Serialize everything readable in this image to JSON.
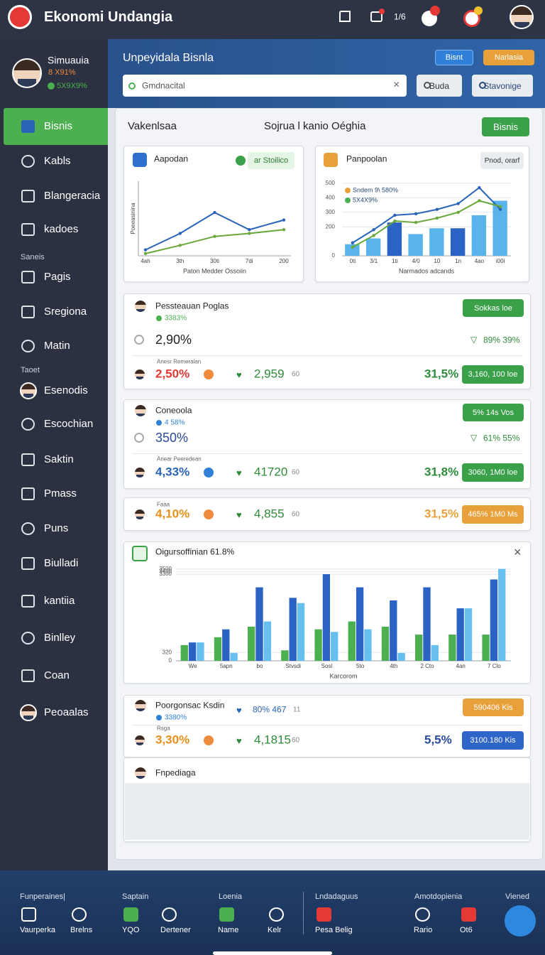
{
  "header": {
    "title": "Ekonomi Undangia",
    "badge": "1/6"
  },
  "profile": {
    "name": "Simuauia",
    "stat1": "8 X91%",
    "stat2": "5X9X9%"
  },
  "menu": {
    "items": [
      "Bisnis",
      "Kabls",
      "Blangeracia",
      "kadoes",
      "Saneis",
      "Pagis",
      "Sregiona",
      "Matin",
      "Taoet",
      "Esenodis",
      "Escochian",
      "Saktin",
      "Pmass",
      "Puns",
      "Biulladi",
      "kantiia",
      "Binlley",
      "Coan",
      "Peoaalas"
    ]
  },
  "banner": {
    "title": "Unpeyidala Bisnla",
    "buttons": [
      "Bisnt",
      "Narlasia"
    ],
    "search": "Gmdnacital",
    "actions": [
      "Buda",
      "Stavonige"
    ]
  },
  "panel": {
    "title": "Vakenlsaa",
    "subtitle": "Sojrua l kanio Oéghia",
    "button": "Bisnis"
  },
  "chart_data": [
    {
      "type": "line",
      "title": "Aapodan",
      "badge": "ar Stoilico",
      "xlabel": "Paton Medder Ossoiin",
      "ylabel": "Poeeasinina",
      "categories": [
        "4ah",
        "3th",
        "30ti",
        "7di",
        "200"
      ],
      "ylim": [
        0,
        100
      ],
      "series": [
        {
          "color": "#2a64b8",
          "values": [
            8,
            30,
            58,
            35,
            48
          ]
        },
        {
          "color": "#6aa83a",
          "values": [
            3,
            14,
            26,
            30,
            35
          ]
        }
      ]
    },
    {
      "type": "bar",
      "title": "Panpoolan",
      "badge": "Pnod, orarf",
      "xlabel": "Narmados adcands",
      "categories": [
        "0ti",
        "3/1",
        "1ti",
        "4/0",
        "10",
        "1n",
        "4ao",
        "i00i"
      ],
      "ylim": [
        0,
        500
      ],
      "yticks": [
        0,
        200,
        300,
        400,
        500
      ],
      "series": [
        {
          "type": "bar",
          "colors": [
            "#5ab4ec",
            "#5ab4ec",
            "#2a63c4",
            "#5ab4ec",
            "#5ab4ec",
            "#2a63c4",
            "#5ab4ec",
            "#5ab4ec"
          ],
          "values": [
            80,
            120,
            230,
            150,
            190,
            190,
            280,
            380
          ]
        },
        {
          "type": "line",
          "name": "Sndem 9\\ 580%",
          "color": "#2a64b8",
          "values": [
            90,
            180,
            280,
            290,
            320,
            360,
            470,
            320
          ]
        },
        {
          "type": "line",
          "name": "5X4X9%",
          "color": "#6aa83a",
          "values": [
            60,
            140,
            240,
            230,
            260,
            300,
            380,
            340
          ]
        }
      ]
    },
    {
      "type": "bar",
      "title": "Oigursoffinian 61.8%",
      "xlabel": "Karcorom",
      "categories": [
        "We",
        "5apn",
        "bo",
        "Stvsdi",
        "Sosl",
        "5to",
        "4th",
        "2 Cto",
        "4an",
        "7 Clo"
      ],
      "ylim": [
        0,
        3600
      ],
      "yticks": [
        0,
        320,
        3300,
        3400,
        3500
      ],
      "series": [
        {
          "color": "#4caf50",
          "values": [
            600,
            900,
            1300,
            400,
            1200,
            1500,
            1300,
            1000,
            1000,
            1000
          ]
        },
        {
          "color": "#2a63c4",
          "values": [
            700,
            1200,
            2800,
            2400,
            3300,
            2800,
            2300,
            2800,
            2000,
            3100
          ]
        },
        {
          "color": "#66bfee",
          "values": [
            700,
            300,
            1500,
            2200,
            1100,
            1200,
            300,
            600,
            2000,
            3500
          ]
        }
      ]
    }
  ],
  "cards": [
    {
      "title": "Pessteauan Poglas",
      "sub": "3383%",
      "badge": "Sokkas loe",
      "main": "2,90%",
      "trend": "89% 39%",
      "note": "Anesr Remeralan",
      "rate": "2,50%",
      "count": "2,959",
      "unit": "60",
      "share": "31,5%",
      "total": "3,160, 100 loe"
    },
    {
      "title": "Coneoola",
      "sub": "4 58%",
      "badge": "5% 14s Vos",
      "main": "350%",
      "trend": "61% 55%",
      "note": "Anear Peeredean",
      "rate": "4,33%",
      "count": "41720",
      "unit": "60",
      "share": "31,8%",
      "total": "3060, 1M0 loe"
    },
    {
      "note": "Faaa",
      "rate": "4,10%",
      "count": "4,855",
      "unit": "60",
      "share": "31,5%",
      "total": "465% 1M0 Ms"
    },
    {
      "title": "Poorgonsac Ksdin",
      "sub": "3380%",
      "badge": "590406 Kis",
      "trend": "80% 467",
      "unit2": "11",
      "note": "Rsga",
      "rate": "3,30%",
      "count": "4,1815",
      "unit": "60",
      "share": "5,5%",
      "total": "3100.180 Kis"
    },
    {
      "title": "Fnpediaga"
    }
  ],
  "bottom_nav": {
    "sections": [
      "Funperaines|",
      "Saptain",
      "Loenia",
      "Lndadaguus",
      "Amotdopienia",
      "Viened"
    ],
    "items": [
      "Vaurperka",
      "Brelns",
      "YQO",
      "Dertener",
      "Name",
      "Kelr",
      "Pesa Belig",
      "Rario",
      "Ot6"
    ]
  }
}
